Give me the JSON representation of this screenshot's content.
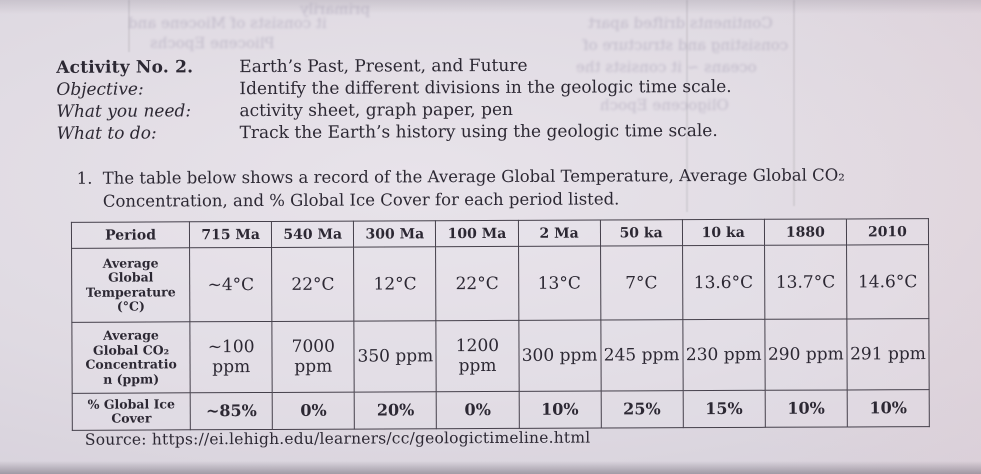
{
  "header": {
    "activity_label": "Activity No. 2.",
    "activity_title": "Earth’s Past, Present, and Future",
    "rows": [
      {
        "label": "Objective:",
        "value": "Identify the different divisions in the geologic time scale."
      },
      {
        "label": "What you need:",
        "value": "activity sheet, graph paper, pen"
      },
      {
        "label": "What to do:",
        "value": "Track the Earth’s history using the geologic time scale."
      }
    ]
  },
  "instruction": {
    "number": "1.",
    "text": "The table below shows a record of the Average Global Temperature, Average Global CO₂ Concentration, and % Global Ice Cover for each period listed."
  },
  "table": {
    "columns": [
      "Period",
      "715 Ma",
      "540 Ma",
      "300 Ma",
      "100 Ma",
      "2 Ma",
      "50 ka",
      "10 ka",
      "1880",
      "2010"
    ],
    "rows": [
      {
        "label": "Average Global Temperature (°C)",
        "label_lines": [
          "Average",
          "Global",
          "Temperature",
          "(°C)"
        ],
        "values": [
          "~4°C",
          "22°C",
          "12°C",
          "22°C",
          "13°C",
          "7°C",
          "13.6°C",
          "13.7°C",
          "14.6°C"
        ]
      },
      {
        "label": "Average Global CO₂ Concentration (ppm)",
        "label_lines": [
          "Average",
          "Global CO₂",
          "Concentratio",
          "n (ppm)"
        ],
        "values": [
          "~100 ppm",
          "7000 ppm",
          "350 ppm",
          "1200 ppm",
          "300 ppm",
          "245 ppm",
          "230 ppm",
          "290 ppm",
          "291 ppm"
        ]
      },
      {
        "label": "% Global Ice Cover",
        "label_lines": [
          "% Global Ice",
          "Cover"
        ],
        "values": [
          "~85%",
          "0%",
          "20%",
          "0%",
          "10%",
          "25%",
          "15%",
          "10%",
          "10%"
        ]
      }
    ]
  },
  "source_line": "Source: https://ei.lehigh.edu/learners/cc/geologictimeline.html",
  "bleedthrough": [
    "it consists of Miocene and",
    "Pliocene Epochs",
    "primarily",
    "Continents drifted apart",
    "consisting and structure of",
    "oceans ~ it consists the",
    "Oligocene Epoch"
  ],
  "colors": {
    "paper": "#e0dbe3",
    "ink": "#2c2833",
    "table_border": "#45404b"
  }
}
